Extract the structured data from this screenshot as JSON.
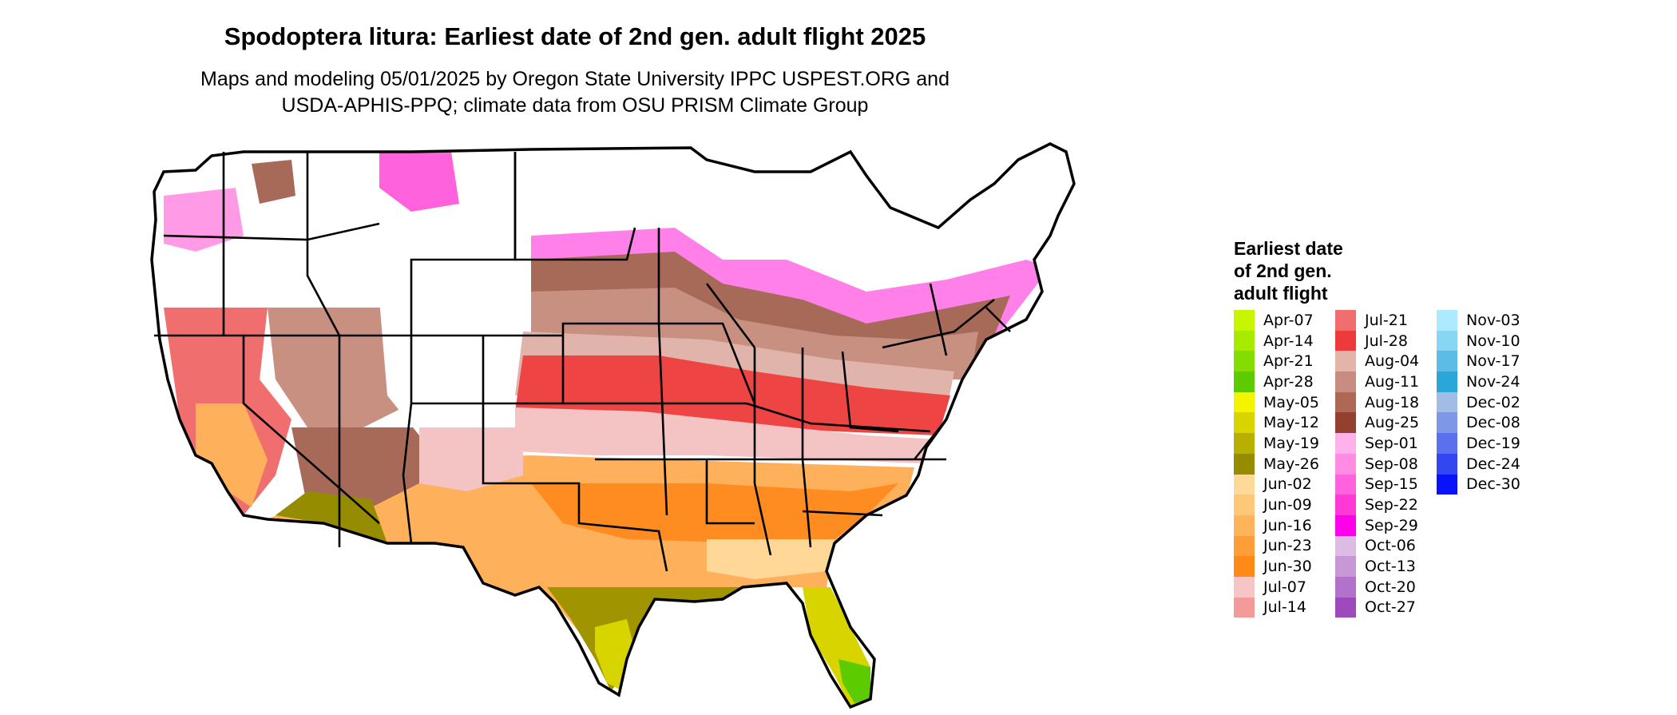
{
  "title": "Spodoptera litura: Earliest date of 2nd gen. adult flight 2025",
  "subtitle_line1": "Maps and modeling 05/01/2025 by Oregon State University IPPC USPEST.ORG and",
  "subtitle_line2": "USDA-APHIS-PPQ; climate data from OSU PRISM Climate Group",
  "legend": {
    "title_lines": [
      "Earliest date",
      "of 2nd gen.",
      "adult flight"
    ],
    "columns": [
      [
        {
          "label": "Apr-07",
          "color": "#c6f700"
        },
        {
          "label": "Apr-14",
          "color": "#a8ea00"
        },
        {
          "label": "Apr-21",
          "color": "#84dc00"
        },
        {
          "label": "Apr-28",
          "color": "#5ccc00"
        },
        {
          "label": "May-05",
          "color": "#f4f400"
        },
        {
          "label": "May-12",
          "color": "#d8d400"
        },
        {
          "label": "May-19",
          "color": "#b8b000"
        },
        {
          "label": "May-26",
          "color": "#968c00"
        },
        {
          "label": "Jun-02",
          "color": "#ffd998"
        },
        {
          "label": "Jun-09",
          "color": "#ffc778"
        },
        {
          "label": "Jun-16",
          "color": "#ffb35a"
        },
        {
          "label": "Jun-23",
          "color": "#ff9e38"
        },
        {
          "label": "Jun-30",
          "color": "#ff8a18"
        },
        {
          "label": "Jul-07",
          "color": "#f6c6c6"
        },
        {
          "label": "Jul-14",
          "color": "#f49a9a"
        }
      ],
      [
        {
          "label": "Jul-21",
          "color": "#f06e6e"
        },
        {
          "label": "Jul-28",
          "color": "#ee3a3a"
        },
        {
          "label": "Aug-04",
          "color": "#e2b4aa"
        },
        {
          "label": "Aug-11",
          "color": "#c88c80"
        },
        {
          "label": "Aug-18",
          "color": "#ae6856"
        },
        {
          "label": "Aug-25",
          "color": "#94402e"
        },
        {
          "label": "Sep-01",
          "color": "#ffb2ea"
        },
        {
          "label": "Sep-08",
          "color": "#ff8ce2"
        },
        {
          "label": "Sep-15",
          "color": "#ff62dc"
        },
        {
          "label": "Sep-22",
          "color": "#ff38d6"
        },
        {
          "label": "Sep-29",
          "color": "#ff00ea"
        },
        {
          "label": "Oct-06",
          "color": "#dcbce2"
        },
        {
          "label": "Oct-13",
          "color": "#c898d6"
        },
        {
          "label": "Oct-20",
          "color": "#b272ca"
        },
        {
          "label": "Oct-27",
          "color": "#9c4abc"
        }
      ],
      [
        {
          "label": "Nov-03",
          "color": "#aeeaff"
        },
        {
          "label": "Nov-10",
          "color": "#88d6f4"
        },
        {
          "label": "Nov-17",
          "color": "#5cbce6"
        },
        {
          "label": "Nov-24",
          "color": "#2aa6d8"
        },
        {
          "label": "Dec-02",
          "color": "#a2bce6"
        },
        {
          "label": "Dec-08",
          "color": "#7e98e6"
        },
        {
          "label": "Dec-19",
          "color": "#5a70ec"
        },
        {
          "label": "Dec-24",
          "color": "#3446f2"
        },
        {
          "label": "Dec-30",
          "color": "#0a12fa"
        }
      ]
    ]
  }
}
